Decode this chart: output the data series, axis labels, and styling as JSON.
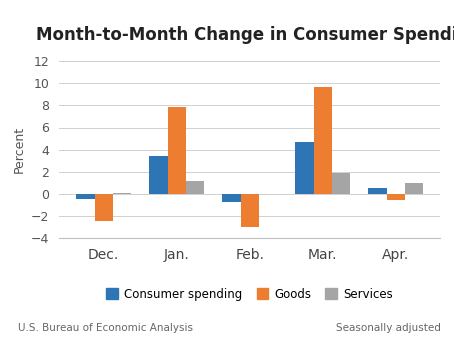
{
  "title": "Month-to-Month Change in Consumer Spending",
  "categories": [
    "Dec.",
    "Jan.",
    "Feb.",
    "Mar.",
    "Apr."
  ],
  "consumer_spending": [
    -0.5,
    3.4,
    -0.7,
    4.7,
    0.5
  ],
  "goods": [
    -2.5,
    7.9,
    -3.0,
    9.7,
    -0.6
  ],
  "services": [
    0.1,
    1.2,
    0.0,
    1.9,
    1.0
  ],
  "colors": {
    "consumer_spending": "#2E75B6",
    "goods": "#ED7D31",
    "services": "#A5A5A5"
  },
  "ylabel": "Percent",
  "ylim": [
    -4,
    12
  ],
  "yticks": [
    -4,
    -2,
    0,
    2,
    4,
    6,
    8,
    10,
    12
  ],
  "legend_labels": [
    "Consumer spending",
    "Goods",
    "Services"
  ],
  "footnote_left": "U.S. Bureau of Economic Analysis",
  "footnote_right": "Seasonally adjusted",
  "bar_width": 0.25,
  "title_fontsize": 12,
  "axis_fontsize": 9,
  "legend_fontsize": 8.5,
  "footnote_fontsize": 7.5
}
